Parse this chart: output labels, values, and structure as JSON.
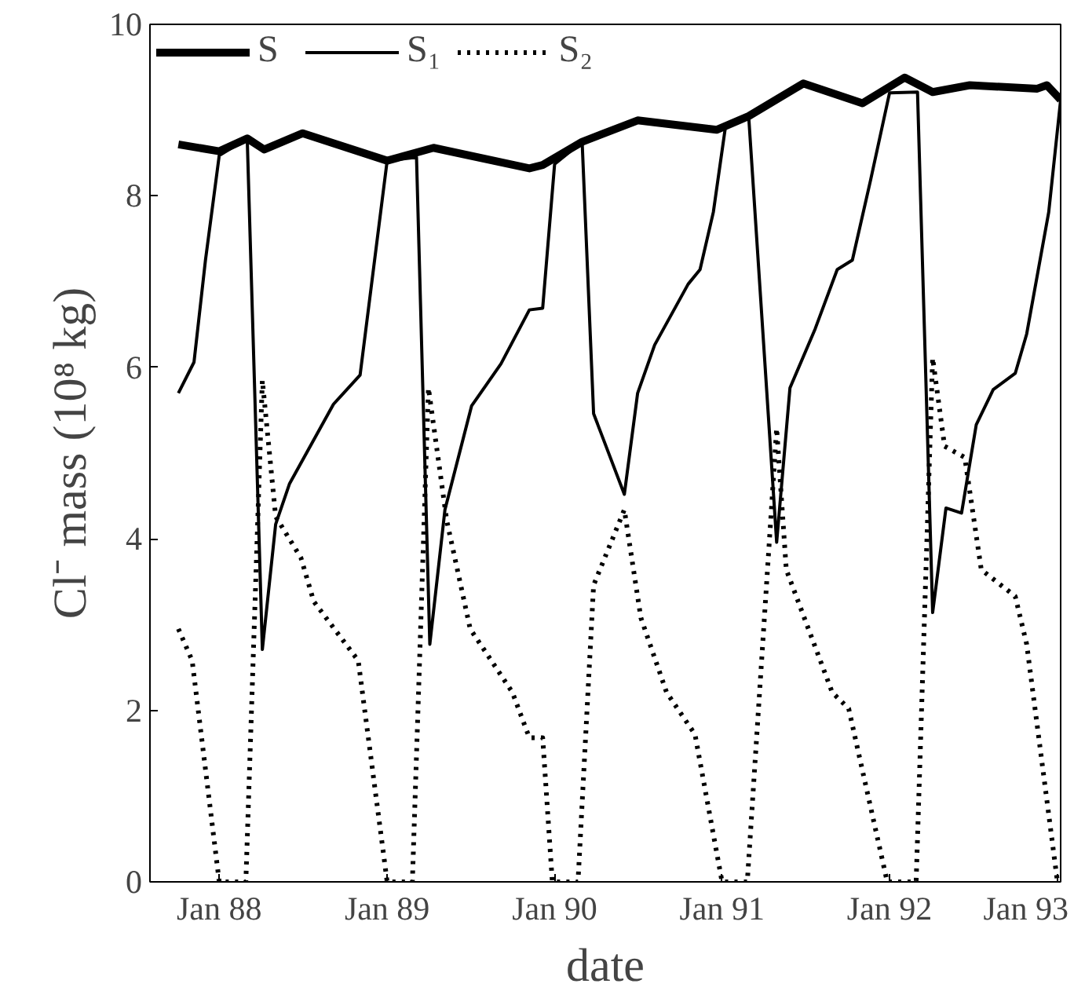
{
  "chart_data": {
    "type": "line",
    "xlabel": "date",
    "ylabel": "Cl⁻ mass (10⁸ kg)",
    "xlim": [
      "1987-08-03",
      "1993-01-08"
    ],
    "ylim": [
      0,
      10
    ],
    "xticks": [
      {
        "value": "1988-01-01",
        "label": "Jan 88"
      },
      {
        "value": "1989-01-01",
        "label": "Jan 89"
      },
      {
        "value": "1990-01-01",
        "label": "Jan 90"
      },
      {
        "value": "1991-01-01",
        "label": "Jan 91"
      },
      {
        "value": "1992-01-01",
        "label": "Jan 92"
      },
      {
        "value": "1993-01-01",
        "label": "Jan 93"
      }
    ],
    "yticks": [
      0,
      2,
      4,
      6,
      8,
      10
    ],
    "grid": false,
    "legend": "top left",
    "series": [
      {
        "name": "S",
        "color": "#000000",
        "line_style": "solid",
        "x": [
          "1987-10-04",
          "1988-01-01",
          "1988-03-02",
          "1988-04-08",
          "1988-07-01",
          "1989-01-01",
          "1989-04-12",
          "1989-11-07",
          "1989-12-06",
          "1990-03-02",
          "1990-07-01",
          "1990-12-20",
          "1991-02-28",
          "1991-06-27",
          "1991-11-03",
          "1992-02-03",
          "1992-04-04",
          "1992-06-24",
          "1992-11-18",
          "1992-12-09",
          "1993-01-08"
        ],
        "values": [
          8.6,
          8.52,
          8.67,
          8.54,
          8.73,
          8.41,
          8.56,
          8.32,
          8.36,
          8.63,
          8.88,
          8.77,
          8.93,
          9.31,
          9.08,
          9.38,
          9.21,
          9.29,
          9.25,
          9.29,
          9.12
        ]
      },
      {
        "name": "S₁",
        "color": "#000000",
        "line_style": "solid",
        "x": [
          "1987-10-04",
          "1987-11-07",
          "1987-12-02",
          "1988-01-01",
          "1988-03-02",
          "1988-04-04",
          "1988-05-03",
          "1988-06-02",
          "1988-09-06",
          "1988-11-03",
          "1989-01-01",
          "1989-03-06",
          "1989-04-04",
          "1989-05-07",
          "1989-07-04",
          "1989-09-06",
          "1989-11-07",
          "1989-12-06",
          "1990-01-01",
          "1990-03-02",
          "1990-03-27",
          "1990-06-02",
          "1990-07-01",
          "1990-08-07",
          "1990-10-19",
          "1990-11-14",
          "1990-12-13",
          "1991-01-08",
          "1991-02-28",
          "1991-04-30",
          "1991-05-29",
          "1991-07-23",
          "1991-09-09",
          "1991-10-12",
          "1991-11-21",
          "1992-01-01",
          "1992-03-02",
          "1992-04-04",
          "1992-05-03",
          "1992-06-06",
          "1992-07-08",
          "1992-08-14",
          "1992-10-01",
          "1992-10-26",
          "1992-12-13",
          "1993-01-08"
        ],
        "values": [
          5.7,
          6.06,
          7.25,
          8.47,
          8.67,
          2.71,
          4.17,
          4.64,
          5.57,
          5.91,
          8.41,
          8.45,
          2.77,
          4.34,
          5.55,
          6.04,
          6.67,
          6.69,
          8.37,
          8.63,
          5.46,
          4.52,
          5.7,
          6.26,
          6.97,
          7.14,
          7.81,
          8.79,
          8.93,
          3.96,
          5.76,
          6.45,
          7.14,
          7.25,
          8.19,
          9.2,
          9.21,
          3.14,
          4.36,
          4.3,
          5.33,
          5.74,
          5.93,
          6.39,
          7.81,
          9.12
        ]
      },
      {
        "name": "S₂",
        "color": "#000000",
        "line_style": "dotted",
        "x": [
          "1987-10-04",
          "1987-11-03",
          "1988-01-01",
          "1988-02-28",
          "1988-04-04",
          "1988-05-03",
          "1988-06-27",
          "1988-07-25",
          "1988-10-30",
          "1989-01-01",
          "1989-02-25",
          "1989-04-01",
          "1989-05-11",
          "1989-07-01",
          "1989-10-01",
          "1989-11-07",
          "1989-12-06",
          "1989-12-27",
          "1990-02-21",
          "1990-03-27",
          "1990-06-02",
          "1990-07-08",
          "1990-09-02",
          "1990-11-03",
          "1991-01-01",
          "1991-02-25",
          "1991-04-30",
          "1991-05-21",
          "1991-08-29",
          "1991-10-04",
          "1991-12-27",
          "1992-02-28",
          "1992-04-04",
          "1992-04-30",
          "1992-06-13",
          "1992-07-19",
          "1992-10-01",
          "1992-10-26",
          "1993-01-01"
        ],
        "values": [
          2.95,
          2.58,
          0,
          0,
          5.85,
          4.26,
          3.78,
          3.27,
          2.58,
          0,
          0,
          5.76,
          4.21,
          2.95,
          2.21,
          1.68,
          1.68,
          0,
          0,
          3.46,
          4.34,
          3.08,
          2.21,
          1.72,
          0,
          0,
          5.29,
          3.64,
          2.21,
          2.02,
          0,
          0,
          6.11,
          5.08,
          4.95,
          3.64,
          3.33,
          2.77,
          0
        ]
      }
    ]
  }
}
